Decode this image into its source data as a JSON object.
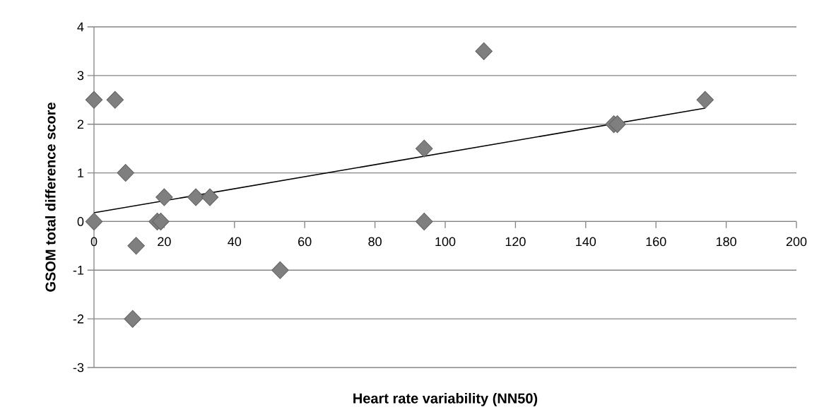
{
  "chart_data": {
    "type": "scatter",
    "xlabel": "Heart rate variability (NN50)",
    "ylabel": "GSOM total difference score",
    "series": [
      {
        "color": "#7f7f7f",
        "marker": "diamond",
        "x": [
          0,
          6,
          9,
          20,
          29,
          33,
          0,
          18,
          19,
          12,
          53,
          11,
          94,
          94,
          111,
          148,
          149,
          174
        ],
        "values": [
          2.5,
          2.5,
          1,
          0.5,
          0.5,
          0.5,
          0,
          0,
          0,
          -0.5,
          -1,
          -2,
          1.5,
          0,
          3.5,
          2,
          2,
          2.5
        ]
      },
      {
        "type": "line",
        "color": "#000000",
        "x": [
          0,
          174
        ],
        "values": [
          0.18,
          2.33
        ]
      }
    ],
    "grid": "y",
    "xlim": [
      0,
      200
    ],
    "ylim": [
      -3,
      4
    ],
    "xticks": [
      0,
      20,
      40,
      60,
      80,
      100,
      120,
      140,
      160,
      180,
      200
    ],
    "yticks": [
      -3,
      -2,
      -1,
      0,
      1,
      2,
      3,
      4
    ]
  }
}
